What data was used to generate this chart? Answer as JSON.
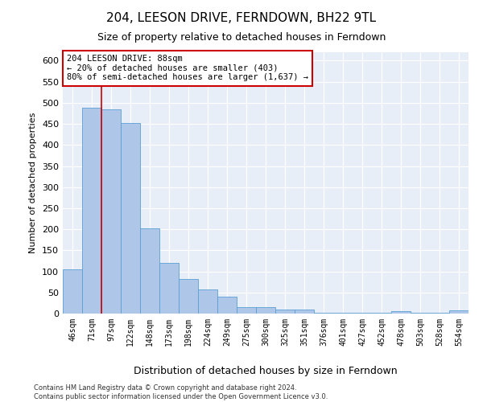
{
  "title": "204, LEESON DRIVE, FERNDOWN, BH22 9TL",
  "subtitle": "Size of property relative to detached houses in Ferndown",
  "xlabel": "Distribution of detached houses by size in Ferndown",
  "ylabel": "Number of detached properties",
  "categories": [
    "46sqm",
    "71sqm",
    "97sqm",
    "122sqm",
    "148sqm",
    "173sqm",
    "198sqm",
    "224sqm",
    "249sqm",
    "275sqm",
    "300sqm",
    "325sqm",
    "351sqm",
    "376sqm",
    "401sqm",
    "427sqm",
    "452sqm",
    "478sqm",
    "503sqm",
    "528sqm",
    "554sqm"
  ],
  "values": [
    105,
    488,
    484,
    452,
    202,
    120,
    82,
    57,
    40,
    15,
    15,
    10,
    10,
    1,
    1,
    1,
    1,
    5,
    1,
    1,
    7
  ],
  "bar_color": "#aec6e8",
  "bar_edge_color": "#5a9fd4",
  "vline_x": 1.5,
  "vline_color": "#cc0000",
  "annotation_text": "204 LEESON DRIVE: 88sqm\n← 20% of detached houses are smaller (403)\n80% of semi-detached houses are larger (1,637) →",
  "annotation_box_color": "#ffffff",
  "annotation_box_edge": "#cc0000",
  "ylim": [
    0,
    620
  ],
  "yticks": [
    0,
    50,
    100,
    150,
    200,
    250,
    300,
    350,
    400,
    450,
    500,
    550,
    600
  ],
  "footer": "Contains HM Land Registry data © Crown copyright and database right 2024.\nContains public sector information licensed under the Open Government Licence v3.0.",
  "background_color": "#e8eef8",
  "grid_color": "#ffffff",
  "title_fontsize": 11,
  "subtitle_fontsize": 9,
  "ylabel_fontsize": 8,
  "xlabel_fontsize": 9,
  "annotation_fontsize": 7.5
}
